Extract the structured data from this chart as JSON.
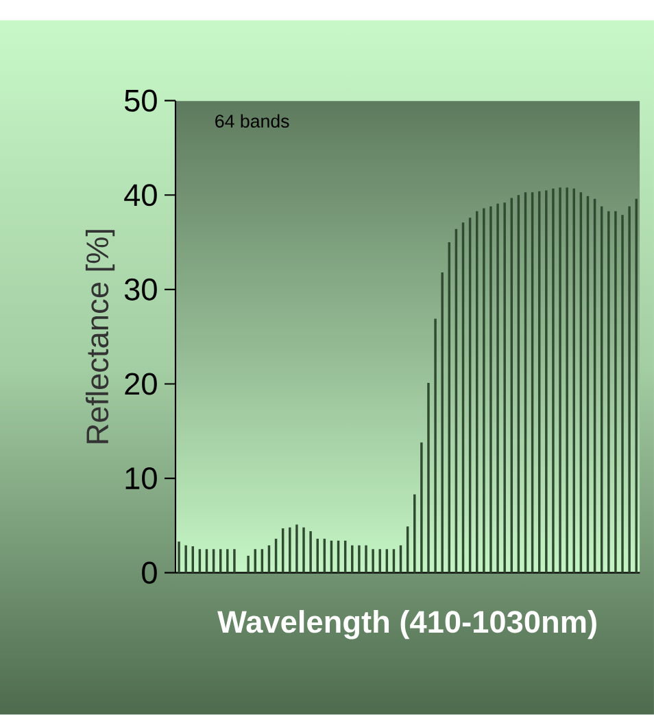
{
  "chart_data": {
    "type": "bar",
    "xlabel": "Wavelength (410-1030nm)",
    "ylabel": "Reflectance [%]",
    "annotations": [
      "64 bands"
    ],
    "categories": [
      null,
      null,
      null,
      null,
      null,
      null,
      null,
      null,
      null,
      null,
      null,
      null,
      null,
      null,
      null,
      null,
      null,
      null,
      null,
      null,
      null,
      null,
      null,
      null,
      null,
      null,
      null,
      null,
      null,
      null,
      null,
      null,
      null,
      null,
      null,
      null,
      null,
      null,
      null,
      null,
      null,
      null,
      null,
      null,
      null,
      null,
      null,
      null,
      null,
      null,
      null,
      null,
      null,
      null,
      null,
      null,
      null,
      null,
      null,
      null,
      null,
      null,
      null,
      null,
      null,
      null,
      null
    ],
    "values": [
      3.3,
      2.9,
      2.8,
      2.5,
      2.5,
      2.5,
      2.5,
      2.5,
      2.5,
      0,
      1.8,
      2.5,
      2.5,
      2.9,
      3.6,
      4.7,
      4.8,
      5.1,
      4.8,
      4.4,
      3.6,
      3.6,
      3.4,
      3.4,
      3.4,
      2.9,
      2.9,
      2.9,
      2.5,
      2.5,
      2.5,
      2.5,
      2.9,
      4.9,
      8.3,
      13.8,
      20.1,
      26.9,
      31.8,
      35.0,
      36.4,
      37.1,
      37.6,
      38.3,
      38.6,
      38.8,
      39.1,
      39.2,
      39.7,
      40.0,
      40.3,
      40.3,
      40.4,
      40.5,
      40.7,
      40.8,
      40.8,
      40.7,
      40.3,
      39.9,
      39.6,
      38.8,
      38.3,
      38.3,
      37.9,
      38.8,
      39.6
    ],
    "color": "#2f4a30",
    "ylim": [
      0,
      50
    ],
    "yticks": [
      0,
      10,
      20,
      30,
      40,
      50
    ],
    "tick_labels": "y"
  }
}
